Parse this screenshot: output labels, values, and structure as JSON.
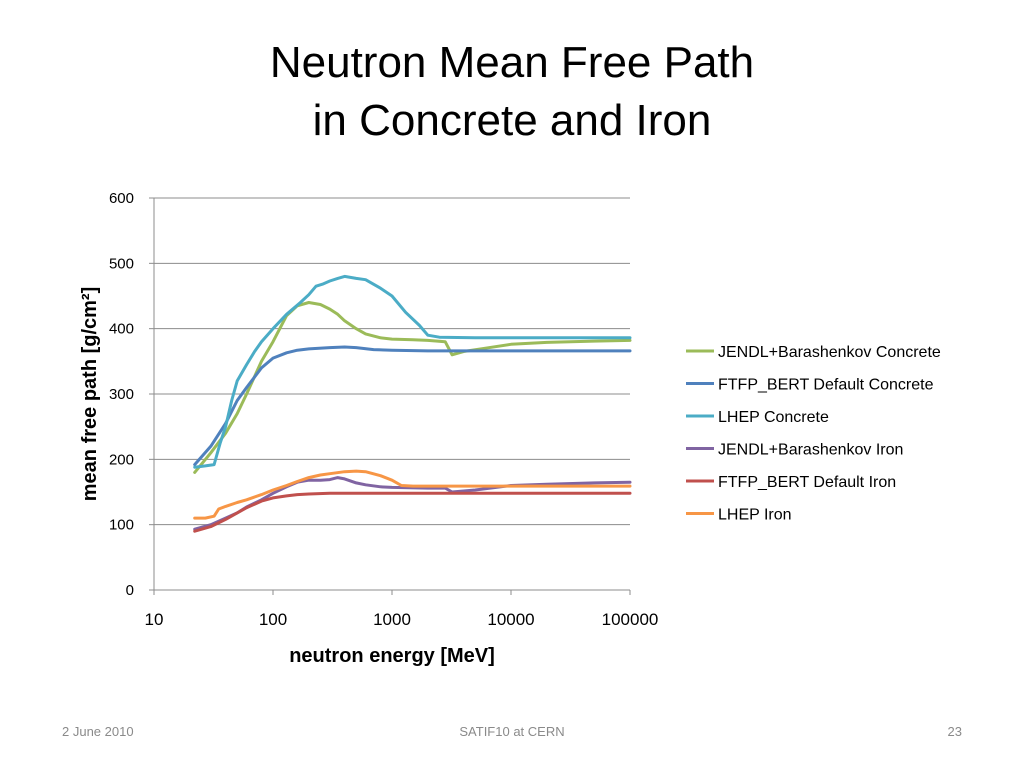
{
  "slide": {
    "title_line1": "Neutron Mean Free Path",
    "title_line2": "in Concrete and Iron"
  },
  "footer": {
    "date": "2 June 2010",
    "event": "SATIF10 at CERN",
    "page": "23"
  },
  "chart_data": {
    "type": "line",
    "title": "",
    "xlabel": "neutron energy [MeV]",
    "ylabel": "mean free path [g/cm²]",
    "x_scale": "log",
    "xlim": [
      10,
      100000
    ],
    "ylim": [
      0,
      600
    ],
    "x_ticks": [
      "10",
      "100",
      "1000",
      "10000",
      "100000"
    ],
    "y_ticks": [
      "0",
      "100",
      "200",
      "300",
      "400",
      "500",
      "600"
    ],
    "grid": "horizontal",
    "legend_position": "right",
    "series": [
      {
        "name": "JENDL+Barashenkov Concrete",
        "color": "#9bbb59",
        "points": [
          [
            22,
            180
          ],
          [
            30,
            210
          ],
          [
            40,
            240
          ],
          [
            50,
            270
          ],
          [
            60,
            300
          ],
          [
            80,
            350
          ],
          [
            100,
            380
          ],
          [
            130,
            420
          ],
          [
            160,
            435
          ],
          [
            200,
            440
          ],
          [
            250,
            437
          ],
          [
            300,
            430
          ],
          [
            350,
            422
          ],
          [
            400,
            412
          ],
          [
            500,
            400
          ],
          [
            600,
            392
          ],
          [
            800,
            386
          ],
          [
            1000,
            384
          ],
          [
            1500,
            383
          ],
          [
            2000,
            382
          ],
          [
            2800,
            380
          ],
          [
            3200,
            360
          ],
          [
            4000,
            365
          ],
          [
            6000,
            370
          ],
          [
            10000,
            376
          ],
          [
            20000,
            379
          ],
          [
            50000,
            381
          ],
          [
            100000,
            382
          ]
        ]
      },
      {
        "name": "FTFP_BERT Default Concrete",
        "color": "#4f81bd",
        "points": [
          [
            22,
            192
          ],
          [
            30,
            220
          ],
          [
            40,
            255
          ],
          [
            50,
            290
          ],
          [
            60,
            310
          ],
          [
            80,
            340
          ],
          [
            100,
            355
          ],
          [
            130,
            363
          ],
          [
            160,
            367
          ],
          [
            200,
            369
          ],
          [
            300,
            371
          ],
          [
            400,
            372
          ],
          [
            500,
            371
          ],
          [
            700,
            368
          ],
          [
            1000,
            367
          ],
          [
            2000,
            366
          ],
          [
            5000,
            366
          ],
          [
            10000,
            366
          ],
          [
            100000,
            366
          ]
        ]
      },
      {
        "name": "LHEP Concrete",
        "color": "#4bacc6",
        "points": [
          [
            22,
            188
          ],
          [
            27,
            190
          ],
          [
            32,
            192
          ],
          [
            36,
            225
          ],
          [
            40,
            250
          ],
          [
            45,
            290
          ],
          [
            50,
            320
          ],
          [
            60,
            345
          ],
          [
            70,
            365
          ],
          [
            80,
            380
          ],
          [
            100,
            400
          ],
          [
            130,
            422
          ],
          [
            170,
            440
          ],
          [
            200,
            452
          ],
          [
            230,
            465
          ],
          [
            260,
            468
          ],
          [
            300,
            473
          ],
          [
            350,
            477
          ],
          [
            400,
            480
          ],
          [
            500,
            477
          ],
          [
            600,
            475
          ],
          [
            800,
            462
          ],
          [
            1000,
            450
          ],
          [
            1300,
            425
          ],
          [
            1700,
            405
          ],
          [
            2000,
            390
          ],
          [
            2500,
            387
          ],
          [
            5000,
            386
          ],
          [
            10000,
            386
          ],
          [
            100000,
            386
          ]
        ]
      },
      {
        "name": "JENDL+Barashenkov Iron",
        "color": "#8064a2",
        "points": [
          [
            22,
            93
          ],
          [
            30,
            100
          ],
          [
            40,
            110
          ],
          [
            50,
            118
          ],
          [
            60,
            127
          ],
          [
            80,
            138
          ],
          [
            100,
            148
          ],
          [
            130,
            158
          ],
          [
            160,
            165
          ],
          [
            200,
            168
          ],
          [
            250,
            168
          ],
          [
            300,
            169
          ],
          [
            350,
            172
          ],
          [
            400,
            170
          ],
          [
            500,
            164
          ],
          [
            600,
            161
          ],
          [
            800,
            158
          ],
          [
            1000,
            157
          ],
          [
            2000,
            156
          ],
          [
            2800,
            156
          ],
          [
            3200,
            150
          ],
          [
            5000,
            153
          ],
          [
            10000,
            160
          ],
          [
            20000,
            162
          ],
          [
            50000,
            164
          ],
          [
            100000,
            165
          ]
        ]
      },
      {
        "name": "FTFP_BERT Default Iron",
        "color": "#c0504d",
        "points": [
          [
            22,
            90
          ],
          [
            30,
            97
          ],
          [
            40,
            108
          ],
          [
            50,
            118
          ],
          [
            60,
            126
          ],
          [
            80,
            136
          ],
          [
            100,
            141
          ],
          [
            130,
            144
          ],
          [
            160,
            146
          ],
          [
            200,
            147
          ],
          [
            300,
            148
          ],
          [
            500,
            148
          ],
          [
            1000,
            148
          ],
          [
            10000,
            148
          ],
          [
            100000,
            148
          ]
        ]
      },
      {
        "name": "LHEP Iron",
        "color": "#f79646",
        "points": [
          [
            22,
            110
          ],
          [
            27,
            110
          ],
          [
            32,
            113
          ],
          [
            35,
            124
          ],
          [
            40,
            128
          ],
          [
            50,
            134
          ],
          [
            60,
            138
          ],
          [
            80,
            146
          ],
          [
            100,
            153
          ],
          [
            130,
            160
          ],
          [
            160,
            166
          ],
          [
            200,
            172
          ],
          [
            250,
            176
          ],
          [
            300,
            178
          ],
          [
            400,
            181
          ],
          [
            500,
            182
          ],
          [
            600,
            181
          ],
          [
            800,
            175
          ],
          [
            1000,
            168
          ],
          [
            1200,
            160
          ],
          [
            1500,
            159
          ],
          [
            3000,
            159
          ],
          [
            10000,
            159
          ],
          [
            100000,
            159
          ]
        ]
      }
    ]
  }
}
